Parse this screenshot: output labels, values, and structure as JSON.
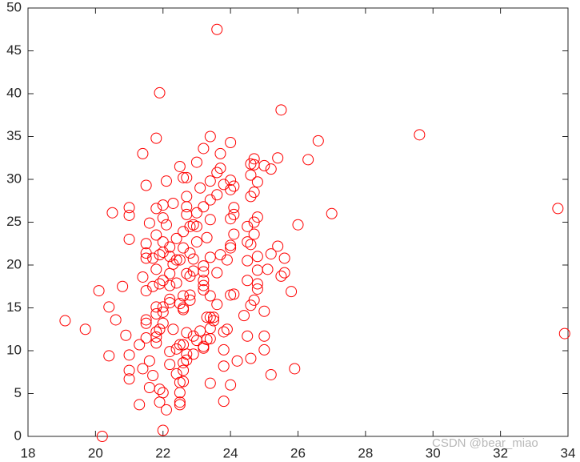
{
  "chart_data": {
    "type": "scatter",
    "color": "#ff0000",
    "xlim": [
      18,
      34
    ],
    "xticks": [
      18,
      20,
      22,
      24,
      26,
      28,
      30,
      32,
      34
    ],
    "ylim": [
      0,
      50
    ],
    "yticks": [
      0,
      5,
      10,
      15,
      20,
      25,
      30,
      35,
      40,
      45,
      50
    ],
    "grid": false,
    "watermark": "CSDN @bear_miao",
    "x": [
      23.6,
      21.9,
      25.5,
      29.6,
      26.6,
      33.7,
      33.9,
      20.2,
      19.1,
      19.7,
      27.0,
      26.0,
      26.3,
      20.1,
      20.5,
      21.0,
      21.0,
      21.0,
      20.8,
      20.4,
      20.6,
      20.9,
      21.0,
      20.4,
      21.0,
      21.0,
      21.4,
      21.3,
      22.0,
      21.4,
      21.8,
      21.5,
      21.6,
      21.8,
      22.0,
      22.0,
      22.1,
      22.3,
      22.5,
      22.6,
      22.7,
      23.0,
      23.2,
      23.4,
      23.7,
      24.0,
      23.6,
      23.7,
      23.4,
      23.8,
      24.0,
      24.0,
      24.1,
      23.1,
      22.7,
      22.7,
      22.7,
      23.0,
      23.2,
      23.4,
      23.6,
      24.1,
      24.1,
      24.0,
      23.4,
      22.9,
      23.0,
      22.8,
      22.6,
      22.1,
      21.5,
      21.8,
      22.0,
      22.2,
      22.4,
      23.0,
      23.3,
      24.0,
      24.1,
      24.5,
      24.6,
      24.7,
      24.7,
      24.8,
      24.5,
      24.6,
      24.7,
      24.8,
      24.6,
      24.6,
      24.7,
      24.7,
      25.0,
      25.2,
      25.4,
      25.4,
      25.6,
      25.2,
      25.6,
      25.5,
      25.1,
      25.8,
      24.8,
      24.5,
      24.8,
      24.8,
      24.8,
      24.5,
      24.0,
      23.9,
      23.4,
      23.7,
      23.2,
      23.2,
      23.2,
      23.2,
      23.6,
      22.9,
      22.8,
      22.7,
      22.9,
      22.8,
      22.6,
      22.4,
      22.5,
      22.3,
      22.2,
      22.0,
      21.9,
      21.7,
      21.5,
      21.5,
      21.8,
      22.2,
      22.0,
      21.9,
      22.2,
      22.4,
      21.4,
      21.7,
      21.5,
      21.8,
      22.0,
      22.0,
      22.2,
      22.2,
      22.6,
      22.8,
      22.8,
      22.6,
      22.6,
      22.5,
      23.2,
      23.4,
      23.6,
      23.4,
      23.5,
      23.5,
      23.3,
      23.4,
      23.1,
      23.4,
      23.3,
      23.2,
      23.0,
      22.7,
      22.3,
      21.9,
      21.8,
      21.8,
      21.8,
      21.5,
      21.5,
      21.5,
      21.8,
      22.0,
      21.3,
      21.6,
      21.7,
      21.6,
      21.9,
      22.0,
      22.1,
      21.9,
      22.5,
      22.5,
      22.5,
      22.5,
      22.6,
      22.4,
      22.6,
      22.6,
      22.7,
      22.2,
      22.2,
      22.4,
      22.5,
      22.6,
      22.7,
      22.9,
      22.9,
      23.2,
      23.4,
      23.8,
      24.0,
      23.8,
      23.8,
      23.8,
      23.9,
      24.2,
      24.6,
      25.0,
      25.0,
      24.5,
      24.4,
      24.6,
      24.7,
      25.0,
      24.0,
      24.1,
      25.2,
      25.9
    ],
    "y": [
      47.5,
      40.1,
      38.1,
      35.2,
      34.5,
      26.6,
      12.0,
      0.0,
      13.5,
      12.5,
      26.0,
      24.7,
      32.3,
      17.0,
      26.1,
      26.7,
      25.8,
      23.0,
      17.5,
      15.1,
      13.6,
      11.8,
      9.5,
      9.4,
      7.7,
      6.7,
      7.9,
      3.7,
      0.7,
      33.0,
      34.8,
      29.3,
      24.9,
      26.6,
      27.0,
      25.5,
      29.8,
      27.2,
      31.5,
      30.2,
      30.2,
      32.0,
      33.6,
      35.0,
      33.0,
      34.3,
      30.8,
      31.3,
      29.8,
      29.4,
      29.9,
      28.8,
      29.2,
      29.0,
      28.0,
      26.8,
      25.9,
      26.1,
      26.8,
      27.6,
      28.2,
      26.7,
      25.9,
      25.4,
      25.3,
      24.7,
      24.5,
      24.5,
      23.9,
      24.7,
      22.5,
      23.5,
      22.7,
      22.1,
      23.1,
      22.7,
      23.2,
      22.3,
      23.6,
      22.7,
      22.4,
      23.6,
      25.0,
      25.6,
      24.5,
      28.0,
      28.5,
      29.7,
      30.5,
      31.8,
      32.4,
      31.7,
      31.6,
      31.2,
      32.5,
      22.2,
      20.8,
      21.3,
      19.1,
      18.7,
      19.5,
      16.9,
      21.0,
      20.5,
      19.4,
      17.8,
      17.2,
      18.2,
      22.0,
      20.6,
      20.9,
      21.2,
      19.9,
      19.2,
      18.2,
      17.6,
      19.1,
      19.3,
      18.7,
      19.0,
      20.7,
      21.4,
      22.0,
      20.6,
      20.6,
      20.1,
      21.0,
      21.5,
      21.2,
      20.8,
      21.4,
      20.8,
      19.5,
      19.0,
      18.2,
      17.8,
      17.6,
      17.9,
      18.6,
      17.5,
      17.0,
      15.1,
      15.1,
      14.5,
      16.0,
      15.6,
      16.4,
      16.5,
      15.9,
      15.0,
      14.8,
      15.5,
      17.1,
      16.4,
      15.4,
      13.9,
      13.5,
      13.9,
      13.9,
      12.6,
      12.3,
      11.4,
      11.3,
      10.5,
      11.2,
      12.1,
      12.5,
      12.5,
      12.2,
      11.6,
      10.9,
      11.5,
      13.6,
      13.2,
      14.3,
      13.2,
      10.7,
      8.8,
      7.1,
      5.7,
      5.5,
      5.1,
      3.1,
      4.0,
      4.0,
      3.7,
      5.1,
      6.3,
      6.4,
      7.3,
      7.7,
      8.6,
      8.9,
      8.4,
      9.9,
      10.2,
      10.7,
      10.7,
      9.6,
      9.6,
      11.7,
      10.3,
      6.2,
      4.1,
      6.0,
      8.2,
      10.1,
      12.2,
      12.5,
      8.8,
      9.1,
      10.1,
      11.7,
      11.7,
      14.1,
      15.3,
      15.9,
      14.6,
      16.5,
      16.6,
      7.2,
      7.9
    ]
  }
}
